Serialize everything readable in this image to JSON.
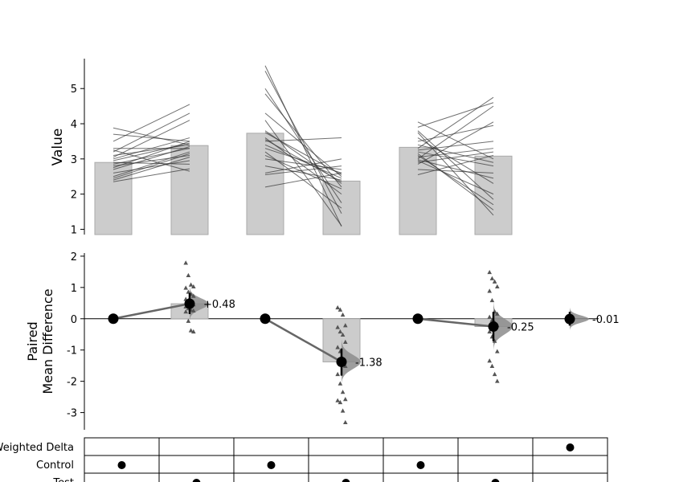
{
  "chart_data": [
    {
      "type": "bar",
      "panel": "raw-data",
      "ylabel": "Value",
      "ylim": [
        0.85,
        5.85
      ],
      "yticks": [
        1,
        2,
        3,
        4,
        5
      ],
      "bars": [
        {
          "group": 1,
          "role": "control",
          "mean": 2.9
        },
        {
          "group": 1,
          "role": "test",
          "mean": 3.38
        },
        {
          "group": 2,
          "role": "control",
          "mean": 3.73
        },
        {
          "group": 2,
          "role": "test",
          "mean": 2.37
        },
        {
          "group": 3,
          "role": "control",
          "mean": 3.33
        },
        {
          "group": 3,
          "role": "test",
          "mean": 3.08
        }
      ],
      "paired_lines": [
        {
          "group": 1,
          "pairs": [
            [
              2.35,
              2.72
            ],
            [
              2.4,
              3.05
            ],
            [
              2.5,
              3.2
            ],
            [
              2.6,
              2.95
            ],
            [
              2.7,
              3.35
            ],
            [
              2.75,
              3.5
            ],
            [
              2.8,
              3.1
            ],
            [
              2.85,
              3.3
            ],
            [
              2.9,
              2.85
            ],
            [
              2.95,
              3.45
            ],
            [
              3.0,
              3.6
            ],
            [
              3.05,
              4.1
            ],
            [
              3.1,
              3.4
            ],
            [
              3.2,
              4.3
            ],
            [
              3.25,
              2.65
            ],
            [
              3.3,
              3.3
            ],
            [
              3.5,
              4.55
            ],
            [
              3.7,
              3.5
            ],
            [
              3.88,
              3.4
            ],
            [
              2.45,
              3.15
            ]
          ]
        },
        {
          "group": 2,
          "pairs": [
            [
              5.65,
              1.08
            ],
            [
              5.5,
              1.45
            ],
            [
              5.0,
              1.75
            ],
            [
              4.85,
              2.2
            ],
            [
              4.3,
              2.5
            ],
            [
              4.1,
              1.1
            ],
            [
              3.8,
              2.3
            ],
            [
              3.75,
              2.55
            ],
            [
              3.6,
              2.0
            ],
            [
              3.5,
              3.6
            ],
            [
              3.4,
              2.45
            ],
            [
              3.3,
              2.6
            ],
            [
              3.2,
              1.6
            ],
            [
              3.0,
              2.7
            ],
            [
              2.8,
              2.4
            ],
            [
              2.6,
              3.0
            ],
            [
              2.55,
              2.8
            ],
            [
              2.2,
              2.6
            ],
            [
              3.55,
              2.35
            ],
            [
              3.1,
              2.15
            ]
          ]
        },
        {
          "group": 3,
          "pairs": [
            [
              4.05,
              3.0
            ],
            [
              3.9,
              4.6
            ],
            [
              3.8,
              1.85
            ],
            [
              3.75,
              1.4
            ],
            [
              3.6,
              2.3
            ],
            [
              3.5,
              3.95
            ],
            [
              3.4,
              2.9
            ],
            [
              3.3,
              4.75
            ],
            [
              3.25,
              3.5
            ],
            [
              3.2,
              2.8
            ],
            [
              3.1,
              1.7
            ],
            [
              3.05,
              3.3
            ],
            [
              3.0,
              4.5
            ],
            [
              2.95,
              2.0
            ],
            [
              2.9,
              3.2
            ],
            [
              2.85,
              4.05
            ],
            [
              2.7,
              2.6
            ],
            [
              2.55,
              3.1
            ],
            [
              3.15,
              1.55
            ],
            [
              2.98,
              2.45
            ]
          ]
        }
      ]
    },
    {
      "type": "scatter",
      "panel": "delta-effect-sizes",
      "ylabel_lines": [
        "Paired",
        "Mean Difference"
      ],
      "ylim": [
        -3.55,
        2.1
      ],
      "yticks": [
        -3,
        -2,
        -1,
        0,
        1,
        2
      ],
      "effects": [
        {
          "group": 1,
          "delta": 0.48,
          "label": "+0.48",
          "ci": [
            0.15,
            0.82
          ],
          "deltas": [
            1.78,
            1.38,
            1.08,
            1.02,
            0.98,
            0.85,
            0.78,
            0.72,
            0.62,
            0.58,
            0.52,
            0.45,
            0.38,
            0.32,
            0.28,
            0.25,
            0.22,
            -0.08,
            -0.38,
            -0.42
          ]
        },
        {
          "group": 2,
          "delta": -1.38,
          "label": "-1.38",
          "ci": [
            -1.82,
            -0.95
          ],
          "deltas": [
            0.35,
            0.28,
            0.12,
            -0.22,
            -0.28,
            -0.42,
            -0.52,
            -0.75,
            -0.92,
            -1.05,
            -1.28,
            -1.52,
            -1.78,
            -2.08,
            -2.35,
            -2.58,
            -2.62,
            -2.68,
            -2.95,
            -3.32
          ]
        },
        {
          "group": 3,
          "delta": -0.25,
          "label": "-0.25",
          "ci": [
            -0.72,
            0.22
          ],
          "deltas": [
            1.48,
            1.28,
            1.18,
            1.02,
            0.88,
            0.58,
            0.22,
            0.15,
            0.05,
            -0.05,
            -0.12,
            -0.22,
            -0.42,
            -0.58,
            -0.72,
            -1.05,
            -1.35,
            -1.52,
            -1.78,
            -2.0
          ]
        }
      ],
      "weighted_delta": {
        "delta": -0.01,
        "label": "-0.01",
        "ci": [
          -0.22,
          0.22
        ]
      }
    }
  ],
  "table": {
    "rows": [
      {
        "label": "Weighted Delta",
        "dots": [
          7
        ]
      },
      {
        "label": "Control",
        "dots": [
          1,
          3,
          5
        ]
      },
      {
        "label": "Test",
        "dots": [
          2,
          4,
          6
        ]
      }
    ],
    "columns": 7
  },
  "colors": {
    "bar": "#cccccc",
    "bar_edge": "#aaaaaa",
    "line": "#333333",
    "violin": "#8c8c8c",
    "point": "#000000"
  }
}
